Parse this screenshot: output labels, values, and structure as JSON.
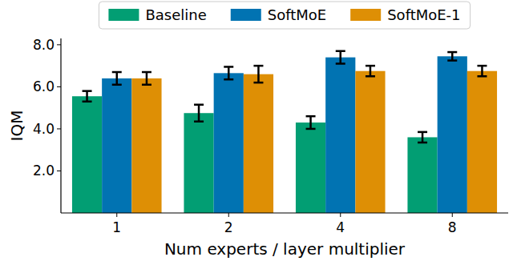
{
  "chart_data": {
    "type": "bar",
    "x_label": "Num experts / layer multiplier",
    "y_label": "IQM",
    "categories": [
      "1",
      "2",
      "4",
      "8"
    ],
    "series": [
      {
        "name": "Baseline",
        "color": "#029e73",
        "values": [
          5.55,
          4.75,
          4.3,
          3.6
        ],
        "errors": [
          0.25,
          0.4,
          0.3,
          0.25
        ]
      },
      {
        "name": "SoftMoE",
        "color": "#0173b2",
        "values": [
          6.4,
          6.65,
          7.4,
          7.45
        ],
        "errors": [
          0.3,
          0.3,
          0.3,
          0.2
        ]
      },
      {
        "name": "SoftMoE-1",
        "color": "#de8f05",
        "values": [
          6.4,
          6.6,
          6.75,
          6.75
        ],
        "errors": [
          0.3,
          0.4,
          0.25,
          0.25
        ]
      }
    ],
    "ylim": [
      0,
      8.3
    ],
    "yticks": [
      {
        "value": 2,
        "label": "2.0"
      },
      {
        "value": 4,
        "label": "4.0"
      },
      {
        "value": 6,
        "label": "6.0"
      },
      {
        "value": 8,
        "label": "8.0"
      }
    ],
    "legend": "top",
    "grid": false
  }
}
